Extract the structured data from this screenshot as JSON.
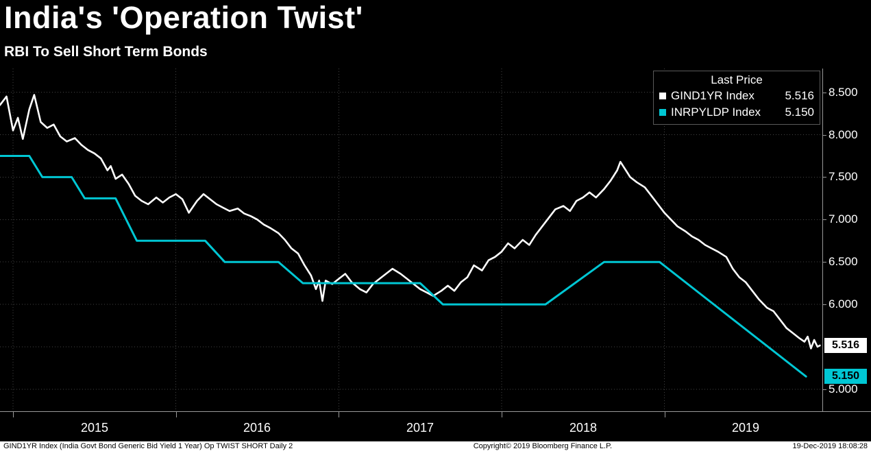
{
  "footer": {
    "left": "GIND1YR Index (India Govt Bond Generic Bid Yield 1 Year) Op TWIST SHORT  Daily 2",
    "center": "Copyright© 2019 Bloomberg Finance L.P.",
    "right": "19-Dec-2019 18:08:28"
  },
  "chart_data": {
    "type": "line",
    "title": "India's 'Operation Twist'",
    "subtitle": "RBI To Sell Short Term Bonds",
    "x_range": [
      2014.92,
      2019.97
    ],
    "ylim": [
      4.74,
      8.78
    ],
    "grid": true,
    "grid_values": [
      5.0,
      5.5,
      6.0,
      6.5,
      7.0,
      7.5,
      8.0,
      8.5
    ],
    "yticks": [
      {
        "value": 8.5,
        "label": "8.500"
      },
      {
        "value": 8.0,
        "label": "8.000"
      },
      {
        "value": 7.5,
        "label": "7.500"
      },
      {
        "value": 7.0,
        "label": "7.000"
      },
      {
        "value": 6.5,
        "label": "6.500"
      },
      {
        "value": 6.0,
        "label": "6.000"
      },
      {
        "value": 5.0,
        "label": "5.000"
      }
    ],
    "year_ticks": [
      {
        "value": 2015,
        "label": "2015"
      },
      {
        "value": 2016,
        "label": "2016"
      },
      {
        "value": 2017,
        "label": "2017"
      },
      {
        "value": 2018,
        "label": "2018"
      },
      {
        "value": 2019,
        "label": "2019"
      }
    ],
    "badges": [
      {
        "value": 5.516,
        "label": "5.516",
        "bg": "#ffffff"
      },
      {
        "value": 5.15,
        "label": "5.150",
        "bg": "#00c7d4"
      }
    ],
    "legend": {
      "title": "Last Price",
      "position": "top-right",
      "entries": [
        {
          "label": "GIND1YR Index",
          "value": "5.516",
          "color": "#ffffff"
        },
        {
          "label": "INRPYLDP Index",
          "value": "5.150",
          "color": "#00c7d4"
        }
      ]
    },
    "series": [
      {
        "name": "GIND1YR Index",
        "color": "#ffffff",
        "width": 2.6,
        "last": 5.516,
        "points": [
          [
            2014.92,
            8.35
          ],
          [
            2014.96,
            8.45
          ],
          [
            2015.0,
            8.05
          ],
          [
            2015.03,
            8.2
          ],
          [
            2015.06,
            7.95
          ],
          [
            2015.1,
            8.3
          ],
          [
            2015.13,
            8.47
          ],
          [
            2015.17,
            8.15
          ],
          [
            2015.21,
            8.08
          ],
          [
            2015.25,
            8.12
          ],
          [
            2015.29,
            7.98
          ],
          [
            2015.33,
            7.92
          ],
          [
            2015.38,
            7.96
          ],
          [
            2015.42,
            7.88
          ],
          [
            2015.46,
            7.82
          ],
          [
            2015.5,
            7.78
          ],
          [
            2015.54,
            7.72
          ],
          [
            2015.58,
            7.58
          ],
          [
            2015.6,
            7.63
          ],
          [
            2015.63,
            7.48
          ],
          [
            2015.67,
            7.53
          ],
          [
            2015.71,
            7.42
          ],
          [
            2015.75,
            7.28
          ],
          [
            2015.79,
            7.22
          ],
          [
            2015.83,
            7.18
          ],
          [
            2015.88,
            7.26
          ],
          [
            2015.92,
            7.2
          ],
          [
            2015.96,
            7.26
          ],
          [
            2016.0,
            7.3
          ],
          [
            2016.04,
            7.24
          ],
          [
            2016.08,
            7.08
          ],
          [
            2016.13,
            7.22
          ],
          [
            2016.17,
            7.3
          ],
          [
            2016.21,
            7.24
          ],
          [
            2016.25,
            7.18
          ],
          [
            2016.29,
            7.14
          ],
          [
            2016.33,
            7.1
          ],
          [
            2016.38,
            7.13
          ],
          [
            2016.42,
            7.07
          ],
          [
            2016.46,
            7.04
          ],
          [
            2016.5,
            7.0
          ],
          [
            2016.54,
            6.94
          ],
          [
            2016.58,
            6.9
          ],
          [
            2016.63,
            6.84
          ],
          [
            2016.67,
            6.76
          ],
          [
            2016.71,
            6.66
          ],
          [
            2016.75,
            6.6
          ],
          [
            2016.79,
            6.46
          ],
          [
            2016.83,
            6.34
          ],
          [
            2016.86,
            6.18
          ],
          [
            2016.88,
            6.28
          ],
          [
            2016.9,
            6.04
          ],
          [
            2016.92,
            6.28
          ],
          [
            2016.96,
            6.24
          ],
          [
            2017.0,
            6.3
          ],
          [
            2017.04,
            6.36
          ],
          [
            2017.08,
            6.26
          ],
          [
            2017.13,
            6.18
          ],
          [
            2017.17,
            6.14
          ],
          [
            2017.21,
            6.24
          ],
          [
            2017.25,
            6.3
          ],
          [
            2017.29,
            6.36
          ],
          [
            2017.33,
            6.42
          ],
          [
            2017.38,
            6.36
          ],
          [
            2017.42,
            6.3
          ],
          [
            2017.46,
            6.24
          ],
          [
            2017.5,
            6.18
          ],
          [
            2017.54,
            6.14
          ],
          [
            2017.58,
            6.1
          ],
          [
            2017.63,
            6.16
          ],
          [
            2017.67,
            6.22
          ],
          [
            2017.71,
            6.16
          ],
          [
            2017.75,
            6.26
          ],
          [
            2017.79,
            6.32
          ],
          [
            2017.83,
            6.46
          ],
          [
            2017.88,
            6.4
          ],
          [
            2017.92,
            6.52
          ],
          [
            2017.96,
            6.56
          ],
          [
            2018.0,
            6.62
          ],
          [
            2018.04,
            6.72
          ],
          [
            2018.08,
            6.66
          ],
          [
            2018.13,
            6.76
          ],
          [
            2018.17,
            6.7
          ],
          [
            2018.21,
            6.82
          ],
          [
            2018.25,
            6.92
          ],
          [
            2018.29,
            7.02
          ],
          [
            2018.33,
            7.12
          ],
          [
            2018.38,
            7.16
          ],
          [
            2018.42,
            7.1
          ],
          [
            2018.46,
            7.22
          ],
          [
            2018.5,
            7.26
          ],
          [
            2018.54,
            7.32
          ],
          [
            2018.58,
            7.26
          ],
          [
            2018.63,
            7.36
          ],
          [
            2018.67,
            7.46
          ],
          [
            2018.71,
            7.58
          ],
          [
            2018.73,
            7.68
          ],
          [
            2018.75,
            7.62
          ],
          [
            2018.77,
            7.56
          ],
          [
            2018.79,
            7.5
          ],
          [
            2018.83,
            7.44
          ],
          [
            2018.88,
            7.38
          ],
          [
            2018.92,
            7.28
          ],
          [
            2018.96,
            7.18
          ],
          [
            2019.0,
            7.08
          ],
          [
            2019.04,
            7.0
          ],
          [
            2019.08,
            6.92
          ],
          [
            2019.13,
            6.86
          ],
          [
            2019.17,
            6.8
          ],
          [
            2019.21,
            6.76
          ],
          [
            2019.25,
            6.7
          ],
          [
            2019.29,
            6.66
          ],
          [
            2019.33,
            6.62
          ],
          [
            2019.38,
            6.56
          ],
          [
            2019.42,
            6.42
          ],
          [
            2019.46,
            6.32
          ],
          [
            2019.5,
            6.26
          ],
          [
            2019.54,
            6.16
          ],
          [
            2019.58,
            6.06
          ],
          [
            2019.63,
            5.96
          ],
          [
            2019.67,
            5.92
          ],
          [
            2019.71,
            5.82
          ],
          [
            2019.75,
            5.72
          ],
          [
            2019.79,
            5.66
          ],
          [
            2019.83,
            5.6
          ],
          [
            2019.86,
            5.56
          ],
          [
            2019.88,
            5.62
          ],
          [
            2019.9,
            5.48
          ],
          [
            2019.92,
            5.58
          ],
          [
            2019.94,
            5.5
          ],
          [
            2019.955,
            5.516
          ]
        ]
      },
      {
        "name": "INRPYLDP Index",
        "color": "#00c7d4",
        "width": 3,
        "last": 5.15,
        "points": [
          [
            2014.92,
            7.75
          ],
          [
            2015.1,
            7.75
          ],
          [
            2015.18,
            7.5
          ],
          [
            2015.36,
            7.5
          ],
          [
            2015.44,
            7.25
          ],
          [
            2015.63,
            7.25
          ],
          [
            2015.76,
            6.75
          ],
          [
            2016.18,
            6.75
          ],
          [
            2016.3,
            6.5
          ],
          [
            2016.63,
            6.5
          ],
          [
            2016.78,
            6.25
          ],
          [
            2017.5,
            6.25
          ],
          [
            2017.64,
            6.0
          ],
          [
            2018.27,
            6.0
          ],
          [
            2018.63,
            6.5
          ],
          [
            2018.97,
            6.5
          ],
          [
            2019.87,
            5.15
          ]
        ]
      }
    ]
  }
}
